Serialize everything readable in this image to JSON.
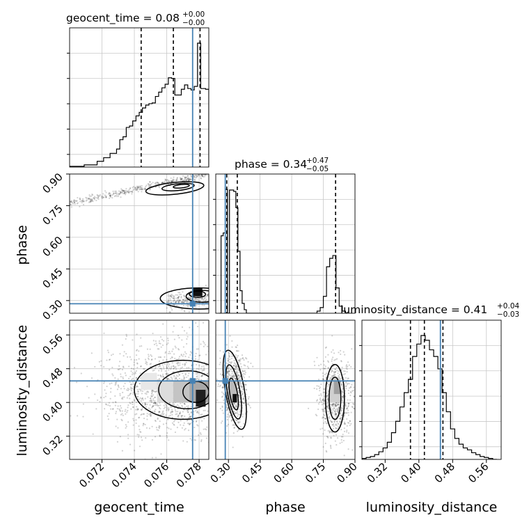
{
  "chart_data": {
    "type": "corner",
    "params": [
      "geocent_time",
      "phase",
      "luminosity_distance"
    ],
    "truth": {
      "geocent_time": 0.0776,
      "phase": 0.285,
      "luminosity_distance": 0.451
    },
    "colors": {
      "truth": "#4682b4",
      "hist": "#000000",
      "grid": "#c8c8c8",
      "quantile": "#000000"
    },
    "titles": [
      {
        "param": "geocent_time",
        "text": "geocent_time = 0.08",
        "plus": "+0.00",
        "minus": "−0.00"
      },
      {
        "param": "phase",
        "text": "phase = 0.34",
        "plus": "+0.47",
        "minus": "−0.05"
      },
      {
        "param": "luminosity_distance",
        "text": "luminosity_distance = 0.41",
        "plus": "+0.04",
        "minus": "−0.03"
      }
    ],
    "axis_labels": {
      "geocent_time": "geocent_time",
      "phase": "phase",
      "luminosity_distance": "luminosity_distance"
    },
    "ranges": {
      "geocent_time": [
        0.07,
        0.0786
      ],
      "phase": [
        0.24,
        0.9
      ],
      "luminosity_distance": [
        0.265,
        0.595
      ]
    },
    "ticks": {
      "geocent_time": [
        "0.072",
        "0.074",
        "0.076",
        "0.078"
      ],
      "phase": [
        "0.30",
        "0.45",
        "0.60",
        "0.75",
        "0.90"
      ],
      "luminosity_distance": [
        "0.32",
        "0.40",
        "0.48",
        "0.56"
      ]
    },
    "quantiles": {
      "geocent_time": [
        0.07442,
        0.07641,
        0.07806
      ],
      "phase": [
        0.292,
        0.342,
        0.808
      ],
      "luminosity_distance": [
        0.38,
        0.413,
        0.457
      ]
    },
    "histograms": {
      "geocent_time": {
        "edges": [
          0.07,
          0.0709,
          0.0717,
          0.0721,
          0.0725,
          0.0729,
          0.0731,
          0.0733,
          0.0735,
          0.0737,
          0.0739,
          0.0741,
          0.0743,
          0.0745,
          0.0747,
          0.0749,
          0.0751,
          0.0753,
          0.0755,
          0.0757,
          0.0759,
          0.0761,
          0.0763,
          0.0765,
          0.0767,
          0.0769,
          0.0771,
          0.0773,
          0.0775,
          0.0777,
          0.0779,
          0.0781,
          0.0784,
          0.0786
        ],
        "counts": [
          1,
          3,
          8,
          13,
          19,
          25,
          38,
          42,
          55,
          57,
          64,
          71,
          76,
          82,
          86,
          88,
          89,
          98,
          104,
          110,
          115,
          124,
          123,
          100,
          100,
          108,
          114,
          109,
          107,
          112,
          172,
          109,
          108
        ]
      },
      "phase": {
        "edges": [
          0.255,
          0.265,
          0.275,
          0.285,
          0.295,
          0.305,
          0.315,
          0.325,
          0.335,
          0.345,
          0.355,
          0.365,
          0.375,
          0.385,
          0.405,
          0.6,
          0.72,
          0.735,
          0.75,
          0.765,
          0.78,
          0.795,
          0.81,
          0.825,
          0.84,
          0.855,
          0.87
        ],
        "counts": [
          0,
          110,
          114,
          176,
          0,
          175,
          175,
          173,
          150,
          88,
          32,
          14,
          5,
          0,
          0,
          0,
          3,
          8,
          24,
          66,
          78,
          82,
          36,
          10,
          3,
          0
        ]
      },
      "luminosity_distance": {
        "edges": [
          0.265,
          0.275,
          0.285,
          0.295,
          0.305,
          0.315,
          0.325,
          0.335,
          0.345,
          0.355,
          0.365,
          0.375,
          0.385,
          0.395,
          0.405,
          0.415,
          0.425,
          0.435,
          0.445,
          0.455,
          0.465,
          0.475,
          0.485,
          0.495,
          0.505,
          0.515,
          0.525,
          0.535,
          0.545,
          0.555,
          0.565,
          0.575,
          0.585
        ],
        "counts": [
          1,
          2,
          3,
          5,
          8,
          12,
          18,
          28,
          40,
          55,
          70,
          84,
          108,
          121,
          130,
          125,
          115,
          108,
          95,
          70,
          50,
          32,
          22,
          16,
          12,
          10,
          7,
          5,
          3,
          2,
          1,
          0
        ]
      }
    },
    "grid": true
  }
}
